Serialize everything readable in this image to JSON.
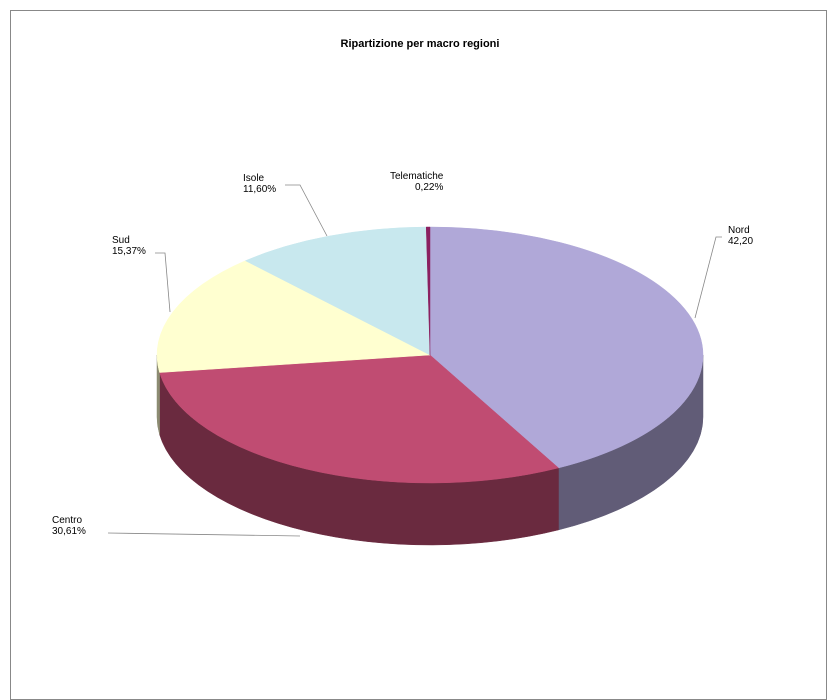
{
  "chart_data": {
    "type": "pie3d",
    "title": "Ripartizione per macro regioni",
    "categories": [
      "Nord",
      "Centro",
      "Sud",
      "Isole",
      "Telematiche"
    ],
    "values": [
      42.2,
      30.61,
      15.37,
      11.6,
      0.22
    ],
    "value_labels": [
      "42,20",
      "30,61%",
      "15,37%",
      "11,60%",
      "0,22%"
    ],
    "colors": [
      "#b0a8d8",
      "#c04c72",
      "#ffffd0",
      "#c8e8ee",
      "#8b2060"
    ]
  }
}
